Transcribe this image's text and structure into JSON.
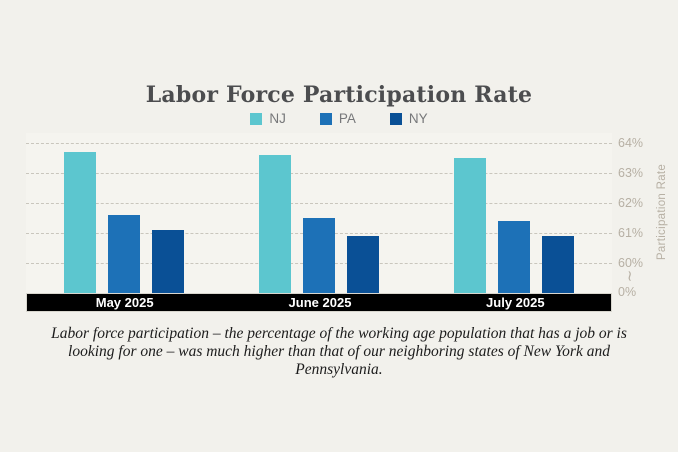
{
  "page": {
    "background": "#f2f1ec"
  },
  "chart": {
    "title": "Labor Force Participation Rate",
    "ylabel": "Participation Rate"
  },
  "chart_data": {
    "type": "bar",
    "title": "Labor Force Participation Rate",
    "categories": [
      "May 2025",
      "June 2025",
      "July 2025"
    ],
    "series": [
      {
        "name": "NJ",
        "color": "#5cc6cf",
        "values": [
          63.7,
          63.6,
          63.5
        ]
      },
      {
        "name": "PA",
        "color": "#1d71b7",
        "values": [
          61.6,
          61.5,
          61.4
        ]
      },
      {
        "name": "NY",
        "color": "#0a5096",
        "values": [
          61.1,
          60.9,
          60.9
        ]
      }
    ],
    "xlabel": "",
    "ylabel": "Participation Rate",
    "ylim": [
      60,
      64
    ],
    "yticks_percent": [
      64,
      63,
      62,
      61,
      60
    ],
    "baseline_tick": "0%",
    "axis_break_symbol": "∼",
    "grid": "dashed-horizontal",
    "legend_position": "top"
  },
  "caption": {
    "text": "Labor force participation – the percentage of the working age population that has a job or is looking for one – was much higher than that of our neighboring states of New York and Pennsylvania."
  }
}
